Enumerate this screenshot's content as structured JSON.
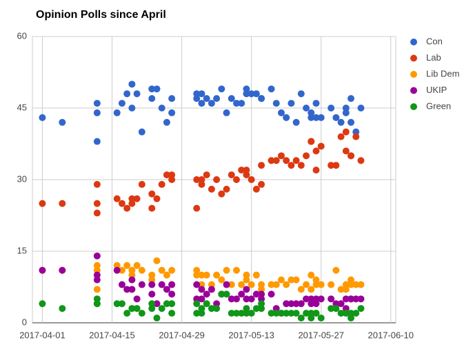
{
  "chart_data": {
    "type": "scatter",
    "title": "Opinion Polls since April",
    "x": [
      "2017-04-01",
      "2017-04-05",
      "2017-04-12",
      "2017-04-12",
      "2017-04-12",
      "2017-04-16",
      "2017-04-17",
      "2017-04-18",
      "2017-04-19",
      "2017-04-19",
      "2017-04-20",
      "2017-04-21",
      "2017-04-23",
      "2017-04-23",
      "2017-04-24",
      "2017-04-25",
      "2017-04-26",
      "2017-04-27",
      "2017-04-27",
      "2017-05-02",
      "2017-05-02",
      "2017-05-03",
      "2017-05-03",
      "2017-05-04",
      "2017-05-05",
      "2017-05-06",
      "2017-05-07",
      "2017-05-08",
      "2017-05-09",
      "2017-05-10",
      "2017-05-11",
      "2017-05-12",
      "2017-05-12",
      "2017-05-13",
      "2017-05-14",
      "2017-05-15",
      "2017-05-15",
      "2017-05-17",
      "2017-05-18",
      "2017-05-19",
      "2017-05-20",
      "2017-05-21",
      "2017-05-22",
      "2017-05-23",
      "2017-05-24",
      "2017-05-25",
      "2017-05-25",
      "2017-05-26",
      "2017-05-26",
      "2017-05-27",
      "2017-05-29",
      "2017-05-30",
      "2017-05-31",
      "2017-06-01",
      "2017-06-01",
      "2017-06-02",
      "2017-06-02",
      "2017-06-03",
      "2017-06-04"
    ],
    "series": [
      {
        "name": "Con",
        "color": "#3366cc",
        "values": [
          43,
          42,
          46,
          44,
          38,
          44,
          46,
          48,
          50,
          45,
          48,
          40,
          49,
          47,
          49,
          45,
          42,
          44,
          47,
          48,
          47,
          48,
          46,
          47,
          46,
          47,
          49,
          44,
          47,
          46,
          46,
          48,
          49,
          48,
          48,
          47,
          47,
          49,
          46,
          44,
          43,
          46,
          42,
          48,
          45,
          44,
          43,
          46,
          43,
          43,
          45,
          43,
          42,
          44,
          45,
          47,
          42,
          40,
          45
        ]
      },
      {
        "name": "Lab",
        "color": "#dc3912",
        "values": [
          25,
          25,
          29,
          25,
          23,
          26,
          25,
          24,
          26,
          25,
          26,
          29,
          27,
          24,
          26,
          29,
          31,
          31,
          30,
          30,
          24,
          29,
          30,
          31,
          28,
          30,
          27,
          28,
          31,
          30,
          32,
          32,
          31,
          30,
          28,
          29,
          33,
          34,
          34,
          35,
          34,
          33,
          34,
          33,
          35,
          38,
          38,
          36,
          32,
          37,
          33,
          33,
          39,
          40,
          36,
          35,
          35,
          39,
          34
        ]
      },
      {
        "name": "Lib Dem",
        "color": "#ff9900",
        "values": [
          11,
          11,
          12,
          11,
          7,
          12,
          11,
          12,
          11,
          10,
          12,
          11,
          10,
          9,
          13,
          11,
          10,
          8,
          11,
          11,
          10,
          8,
          10,
          10,
          8,
          10,
          9,
          11,
          8,
          11,
          8,
          9,
          10,
          8,
          10,
          8,
          7,
          8,
          8,
          9,
          8,
          9,
          9,
          7,
          8,
          10,
          7,
          9,
          8,
          8,
          8,
          11,
          7,
          8,
          7,
          9,
          8,
          8,
          8
        ]
      },
      {
        "name": "UKIP",
        "color": "#990099",
        "values": [
          11,
          11,
          14,
          10,
          9,
          11,
          8,
          7,
          9,
          7,
          5,
          8,
          8,
          6,
          4,
          8,
          7,
          6,
          8,
          8,
          5,
          7,
          5,
          6,
          7,
          4,
          6,
          8,
          5,
          5,
          6,
          7,
          5,
          5,
          6,
          5,
          6,
          6,
          3,
          2,
          4,
          4,
          4,
          4,
          5,
          4,
          5,
          5,
          4,
          5,
          5,
          4,
          4,
          5,
          3,
          5,
          5,
          5,
          5
        ]
      },
      {
        "name": "Green",
        "color": "#109618",
        "values": [
          4,
          3,
          5,
          4,
          4,
          4,
          4,
          2,
          3,
          3,
          3,
          2,
          3,
          4,
          1,
          3,
          4,
          2,
          4,
          4,
          2,
          2,
          3,
          4,
          3,
          3,
          6,
          6,
          2,
          2,
          2,
          2,
          3,
          2,
          3,
          4,
          3,
          2,
          2,
          2,
          2,
          2,
          2,
          1,
          2,
          2,
          1,
          2,
          2,
          1,
          3,
          3,
          2,
          2,
          2,
          1,
          2,
          2,
          3
        ]
      }
    ],
    "xlim": [
      "2017-03-30",
      "2017-06-11"
    ],
    "xticks": [
      "2017-04-01",
      "2017-04-15",
      "2017-04-29",
      "2017-05-13",
      "2017-05-27",
      "2017-06-10"
    ],
    "ylim": [
      0,
      60
    ],
    "yticks": [
      0,
      15,
      30,
      45,
      60
    ],
    "grid": true,
    "legend": "right"
  }
}
